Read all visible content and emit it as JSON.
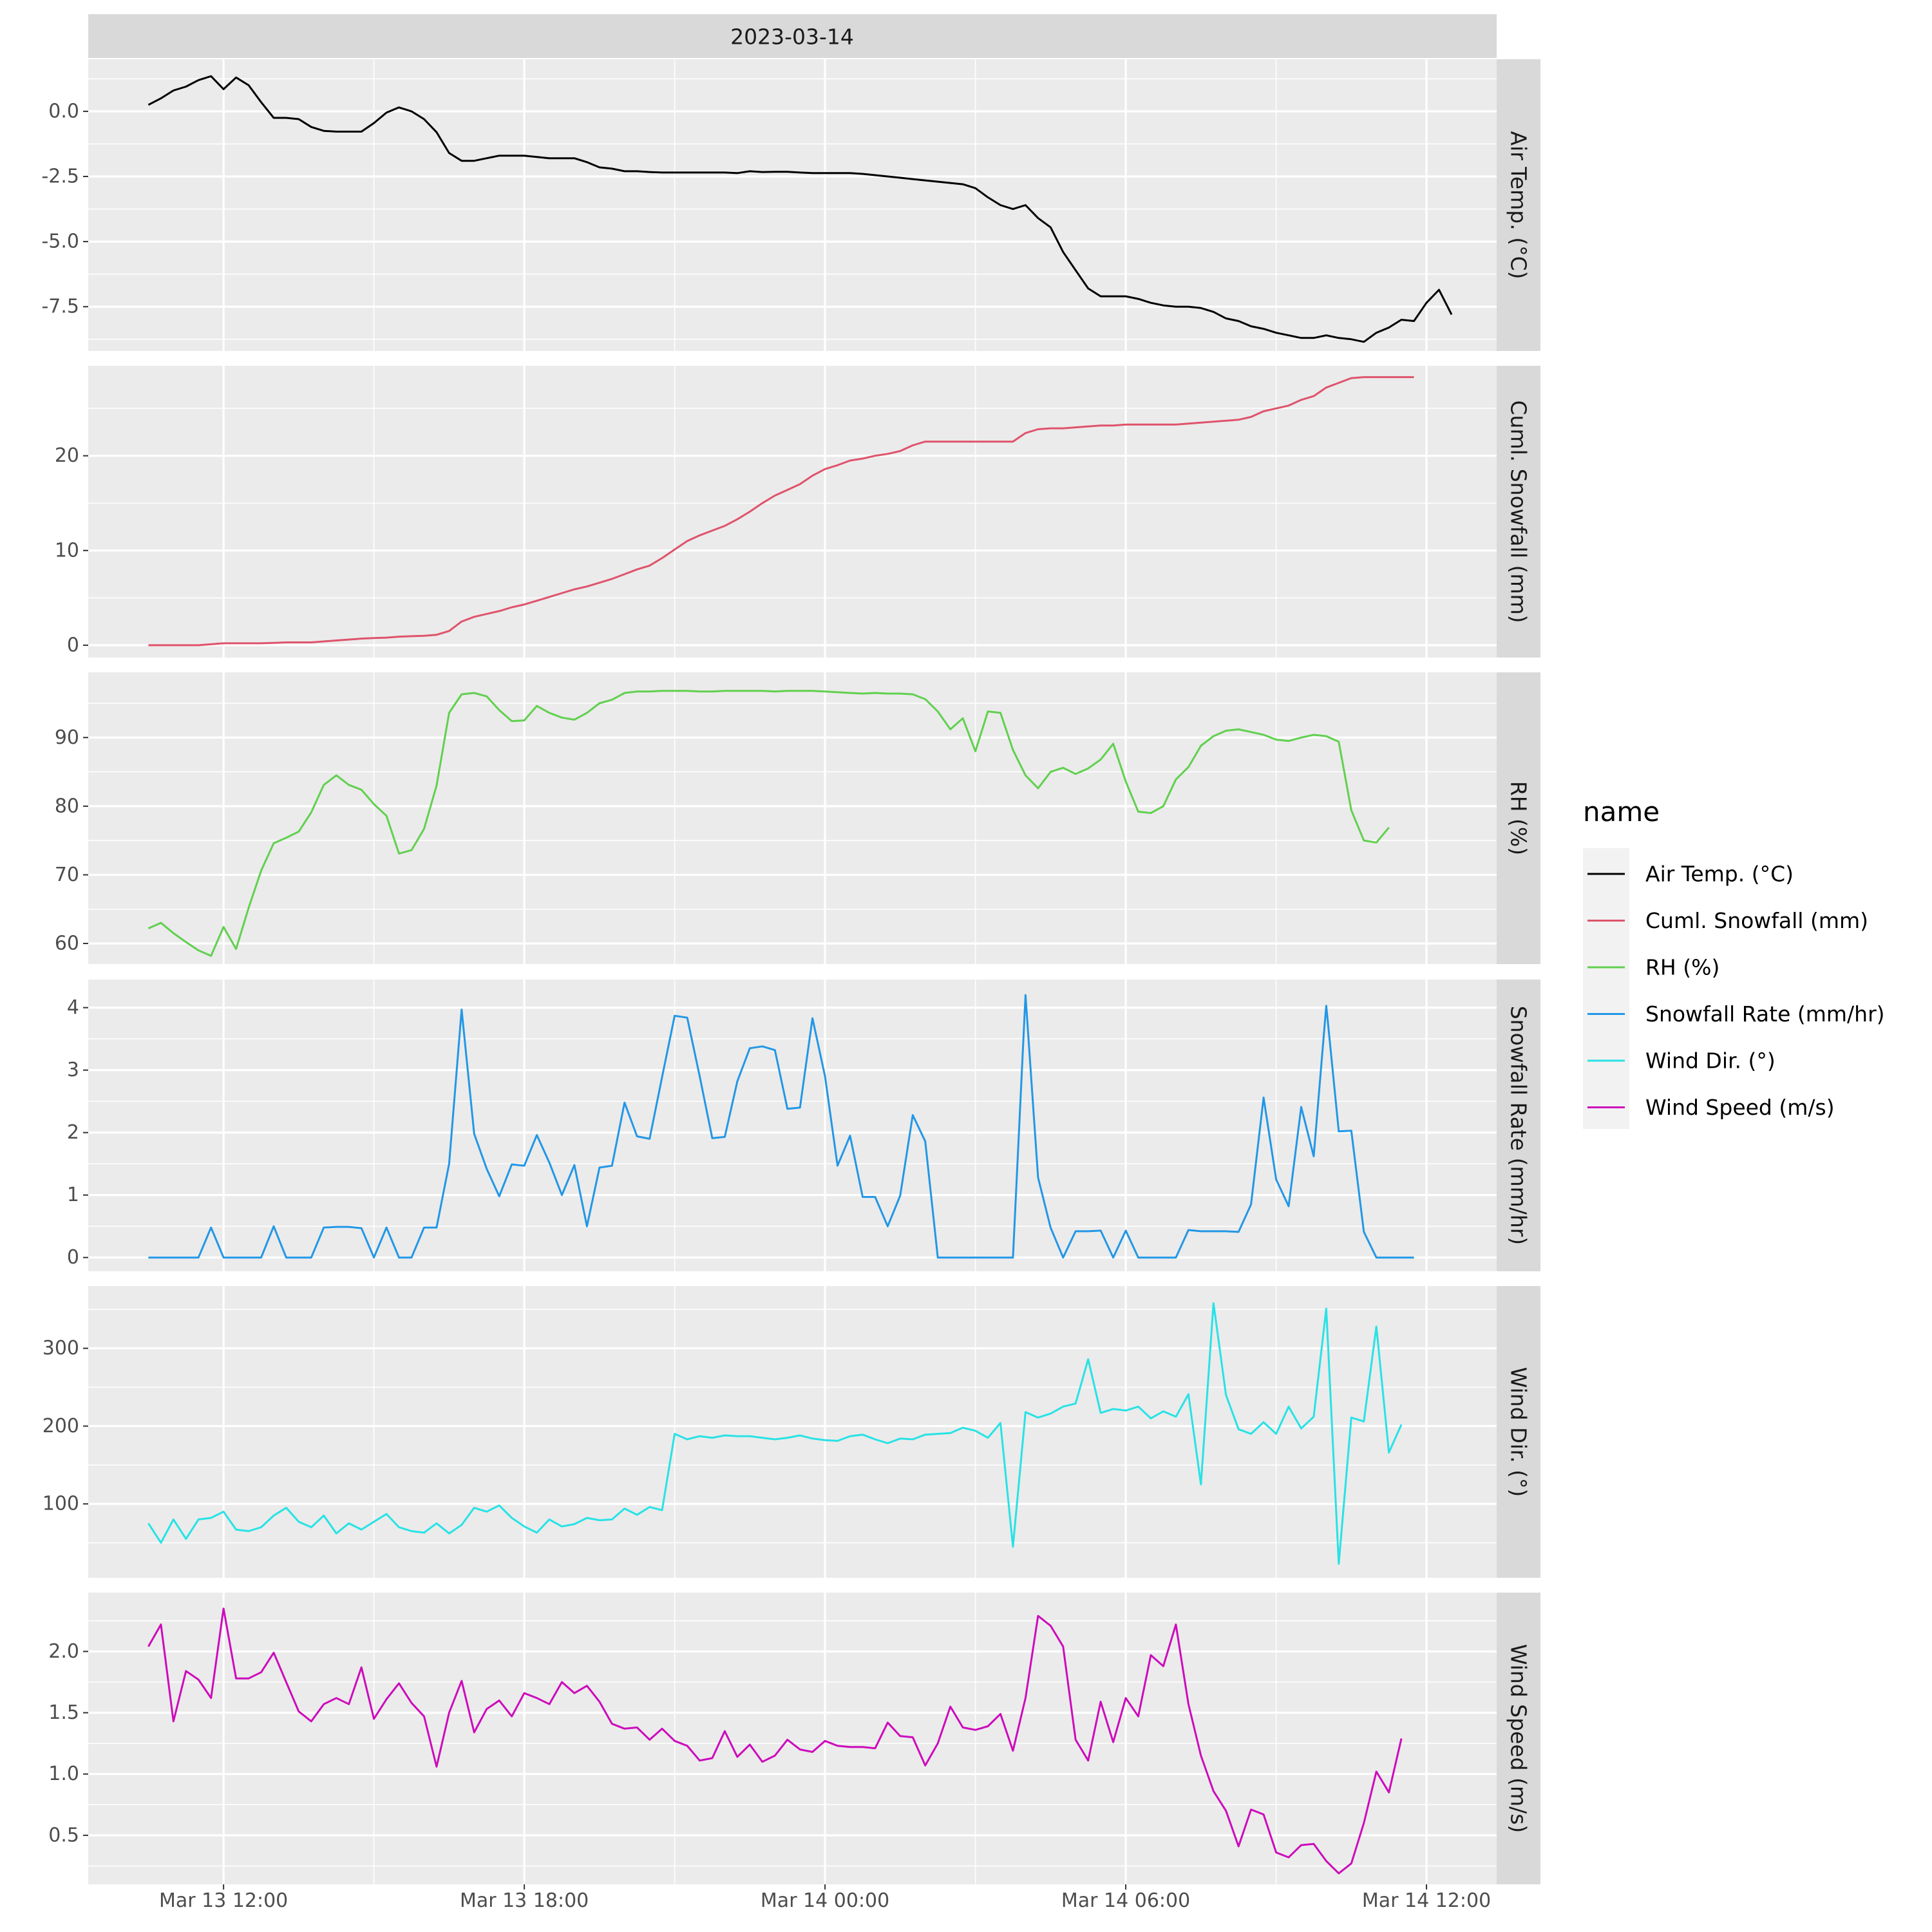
{
  "chart_data": {
    "type": "line",
    "title": "",
    "facet_top_label": "2023-03-14",
    "x_tick_labels": [
      "Mar 13 12:00",
      "Mar 13 18:00",
      "Mar 14 00:00",
      "Mar 14 06:00",
      "Mar 14 12:00"
    ],
    "x_tick_hours": [
      12,
      18,
      24,
      30,
      36
    ],
    "xlim_hours": [
      9.3,
      37.4
    ],
    "x_start_hour": 10.5,
    "x_step_hours": 0.25,
    "grid": true,
    "legend": {
      "title": "name",
      "position": "right",
      "entries": [
        "Air Temp. (°C)",
        "Cuml. Snowfall (mm)",
        "RH (%)",
        "Snowfall Rate (mm/hr)",
        "Wind Dir. (°)",
        "Wind Speed (m/s)"
      ]
    },
    "panels": [
      {
        "name": "Air Temp. (°C)",
        "color": "#000000",
        "ylim": [
          -9.2,
          2.0
        ],
        "y_ticks": [
          0.0,
          -2.5,
          -5.0,
          -7.5
        ],
        "y_tick_labels": [
          "0.0",
          "-2.5",
          "-5.0",
          "-7.5"
        ],
        "values": [
          0.25,
          0.5,
          0.8,
          0.95,
          1.2,
          1.35,
          0.85,
          1.3,
          1.0,
          0.35,
          -0.25,
          -0.25,
          -0.3,
          -0.6,
          -0.75,
          -0.78,
          -0.78,
          -0.78,
          -0.45,
          -0.05,
          0.15,
          0.0,
          -0.3,
          -0.8,
          -1.6,
          -1.9,
          -1.9,
          -1.8,
          -1.7,
          -1.7,
          -1.7,
          -1.75,
          -1.8,
          -1.8,
          -1.8,
          -1.95,
          -2.15,
          -2.2,
          -2.3,
          -2.3,
          -2.33,
          -2.35,
          -2.35,
          -2.35,
          -2.35,
          -2.35,
          -2.35,
          -2.37,
          -2.3,
          -2.33,
          -2.32,
          -2.32,
          -2.35,
          -2.37,
          -2.37,
          -2.37,
          -2.37,
          -2.4,
          -2.45,
          -2.5,
          -2.55,
          -2.6,
          -2.65,
          -2.7,
          -2.75,
          -2.8,
          -2.95,
          -3.3,
          -3.6,
          -3.75,
          -3.6,
          -4.1,
          -4.45,
          -5.4,
          -6.1,
          -6.8,
          -7.1,
          -7.1,
          -7.1,
          -7.2,
          -7.35,
          -7.45,
          -7.5,
          -7.5,
          -7.55,
          -7.7,
          -7.95,
          -8.05,
          -8.25,
          -8.35,
          -8.5,
          -8.6,
          -8.7,
          -8.7,
          -8.6,
          -8.7,
          -8.75,
          -8.85,
          -8.5,
          -8.3,
          -8.0,
          -8.05,
          -7.35,
          -6.85,
          -7.8
        ]
      },
      {
        "name": "Cuml. Snowfall (mm)",
        "color": "#df536b",
        "ylim": [
          -1.3,
          29.5
        ],
        "y_ticks": [
          0,
          10,
          20
        ],
        "y_tick_labels": [
          "0",
          "10",
          "20"
        ],
        "values": [
          0.0,
          0.0,
          0.0,
          0.0,
          0.0,
          0.1,
          0.2,
          0.2,
          0.2,
          0.2,
          0.25,
          0.3,
          0.3,
          0.3,
          0.4,
          0.5,
          0.6,
          0.7,
          0.75,
          0.8,
          0.9,
          0.95,
          1.0,
          1.1,
          1.5,
          2.5,
          3.0,
          3.3,
          3.6,
          4.0,
          4.3,
          4.7,
          5.1,
          5.5,
          5.9,
          6.2,
          6.6,
          7.0,
          7.5,
          8.0,
          8.4,
          9.2,
          10.1,
          11.0,
          11.6,
          12.1,
          12.6,
          13.3,
          14.1,
          15.0,
          15.8,
          16.4,
          17.0,
          17.9,
          18.6,
          19.0,
          19.5,
          19.7,
          20.0,
          20.2,
          20.5,
          21.1,
          21.5,
          21.5,
          21.5,
          21.5,
          21.5,
          21.5,
          21.5,
          21.5,
          22.4,
          22.8,
          22.9,
          22.9,
          23.0,
          23.1,
          23.2,
          23.2,
          23.3,
          23.3,
          23.3,
          23.3,
          23.3,
          23.4,
          23.5,
          23.6,
          23.7,
          23.8,
          24.1,
          24.7,
          25.0,
          25.3,
          25.9,
          26.3,
          27.2,
          27.7,
          28.2,
          28.3,
          28.3,
          28.3,
          28.3,
          28.3
        ]
      },
      {
        "name": "RH (%)",
        "color": "#61d04f",
        "ylim": [
          57.0,
          99.5
        ],
        "y_ticks": [
          60,
          70,
          80,
          90
        ],
        "y_tick_labels": [
          "60",
          "70",
          "80",
          "90"
        ],
        "values": [
          62.2,
          63.0,
          61.5,
          60.2,
          59.0,
          58.2,
          62.4,
          59.2,
          65.2,
          70.6,
          74.6,
          75.4,
          76.3,
          79.1,
          83.1,
          84.5,
          83.1,
          82.4,
          80.3,
          78.6,
          73.1,
          73.6,
          76.7,
          83.0,
          93.6,
          96.3,
          96.5,
          96.0,
          94.0,
          92.4,
          92.5,
          94.6,
          93.6,
          92.9,
          92.6,
          93.6,
          95.0,
          95.5,
          96.5,
          96.7,
          96.7,
          96.8,
          96.8,
          96.8,
          96.7,
          96.7,
          96.8,
          96.8,
          96.8,
          96.8,
          96.7,
          96.8,
          96.8,
          96.8,
          96.7,
          96.6,
          96.5,
          96.4,
          96.5,
          96.4,
          96.4,
          96.3,
          95.6,
          93.8,
          91.2,
          92.8,
          88.0,
          93.8,
          93.6,
          88.2,
          84.5,
          82.6,
          85.0,
          85.6,
          84.7,
          85.5,
          86.8,
          89.1,
          83.6,
          79.2,
          79.0,
          80.0,
          83.9,
          85.7,
          88.8,
          90.2,
          91.0,
          91.2,
          90.8,
          90.4,
          89.7,
          89.5,
          90.0,
          90.4,
          90.2,
          89.4,
          79.4,
          75.0,
          74.7,
          76.9
        ]
      },
      {
        "name": "Snowfall Rate (mm/hr)",
        "color": "#2297e6",
        "ylim": [
          -0.22,
          4.45
        ],
        "y_ticks": [
          0,
          1,
          2,
          3,
          4
        ],
        "y_tick_labels": [
          "0",
          "1",
          "2",
          "3",
          "4"
        ],
        "values": [
          0,
          0,
          0,
          0,
          0,
          0.48,
          0,
          0,
          0,
          0,
          0.5,
          0,
          0,
          0,
          0.48,
          0.49,
          0.49,
          0.47,
          0,
          0.48,
          0,
          0,
          0.48,
          0.48,
          1.5,
          3.97,
          1.98,
          1.42,
          0.98,
          1.49,
          1.47,
          1.96,
          1.52,
          1.0,
          1.48,
          0.5,
          1.44,
          1.47,
          2.48,
          1.94,
          1.9,
          2.89,
          3.87,
          3.84,
          2.9,
          1.91,
          1.93,
          2.82,
          3.35,
          3.38,
          3.32,
          2.38,
          2.4,
          3.83,
          2.9,
          1.47,
          1.95,
          0.97,
          0.97,
          0.5,
          0.99,
          2.28,
          1.86,
          0,
          0,
          0,
          0,
          0,
          0,
          0,
          4.2,
          1.28,
          0.48,
          0,
          0.42,
          0.42,
          0.43,
          0,
          0.43,
          0,
          0,
          0,
          0,
          0.44,
          0.42,
          0.42,
          0.42,
          0.41,
          0.85,
          2.56,
          1.25,
          0.82,
          2.41,
          1.62,
          4.03,
          2.02,
          2.03,
          0.41,
          0,
          0,
          0,
          0
        ]
      },
      {
        "name": "Wind Dir. (°)",
        "color": "#28e2e5",
        "ylim": [
          5,
          380
        ],
        "y_ticks": [
          100,
          200,
          300
        ],
        "y_tick_labels": [
          "100",
          "200",
          "300"
        ],
        "values": [
          75,
          50,
          80,
          55,
          80,
          82,
          90,
          67,
          65,
          70,
          85,
          95,
          77,
          70,
          85,
          62,
          75,
          67,
          77,
          87,
          70,
          65,
          63,
          75,
          62,
          73,
          95,
          90,
          98,
          82,
          71,
          63,
          80,
          71,
          74,
          82,
          79,
          80,
          94,
          86,
          96,
          92,
          190,
          183,
          187,
          185,
          188,
          187,
          187,
          185,
          183,
          185,
          188,
          184,
          182,
          181,
          187,
          189,
          183,
          178,
          184,
          183,
          189,
          190,
          191,
          198,
          194,
          185,
          204,
          45,
          218,
          211,
          216,
          225,
          229,
          286,
          217,
          222,
          220,
          225,
          210,
          219,
          212,
          241,
          125,
          358,
          240,
          196,
          190,
          205,
          190,
          225,
          197,
          212,
          351,
          23,
          211,
          206,
          328,
          166,
          202
        ]
      },
      {
        "name": "Wind Speed (m/s)",
        "color": "#cd0bbc",
        "ylim": [
          0.1,
          2.48
        ],
        "y_ticks": [
          0.5,
          1.0,
          1.5,
          2.0
        ],
        "y_tick_labels": [
          "0.5",
          "1.0",
          "1.5",
          "2.0"
        ],
        "values": [
          2.04,
          2.22,
          1.43,
          1.84,
          1.77,
          1.62,
          2.35,
          1.78,
          1.78,
          1.83,
          1.99,
          1.75,
          1.51,
          1.43,
          1.57,
          1.62,
          1.57,
          1.87,
          1.45,
          1.61,
          1.74,
          1.58,
          1.47,
          1.06,
          1.5,
          1.76,
          1.34,
          1.53,
          1.6,
          1.47,
          1.66,
          1.62,
          1.57,
          1.75,
          1.66,
          1.72,
          1.59,
          1.41,
          1.37,
          1.38,
          1.28,
          1.37,
          1.27,
          1.23,
          1.11,
          1.13,
          1.35,
          1.14,
          1.24,
          1.1,
          1.15,
          1.28,
          1.2,
          1.18,
          1.27,
          1.23,
          1.22,
          1.22,
          1.21,
          1.42,
          1.31,
          1.3,
          1.07,
          1.25,
          1.55,
          1.38,
          1.36,
          1.39,
          1.49,
          1.19,
          1.62,
          2.29,
          2.21,
          2.04,
          1.28,
          1.11,
          1.59,
          1.26,
          1.62,
          1.47,
          1.97,
          1.88,
          2.22,
          1.57,
          1.15,
          0.86,
          0.7,
          0.41,
          0.71,
          0.67,
          0.36,
          0.32,
          0.42,
          0.43,
          0.29,
          0.19,
          0.27,
          0.6,
          1.02,
          0.85,
          1.29
        ]
      }
    ]
  }
}
